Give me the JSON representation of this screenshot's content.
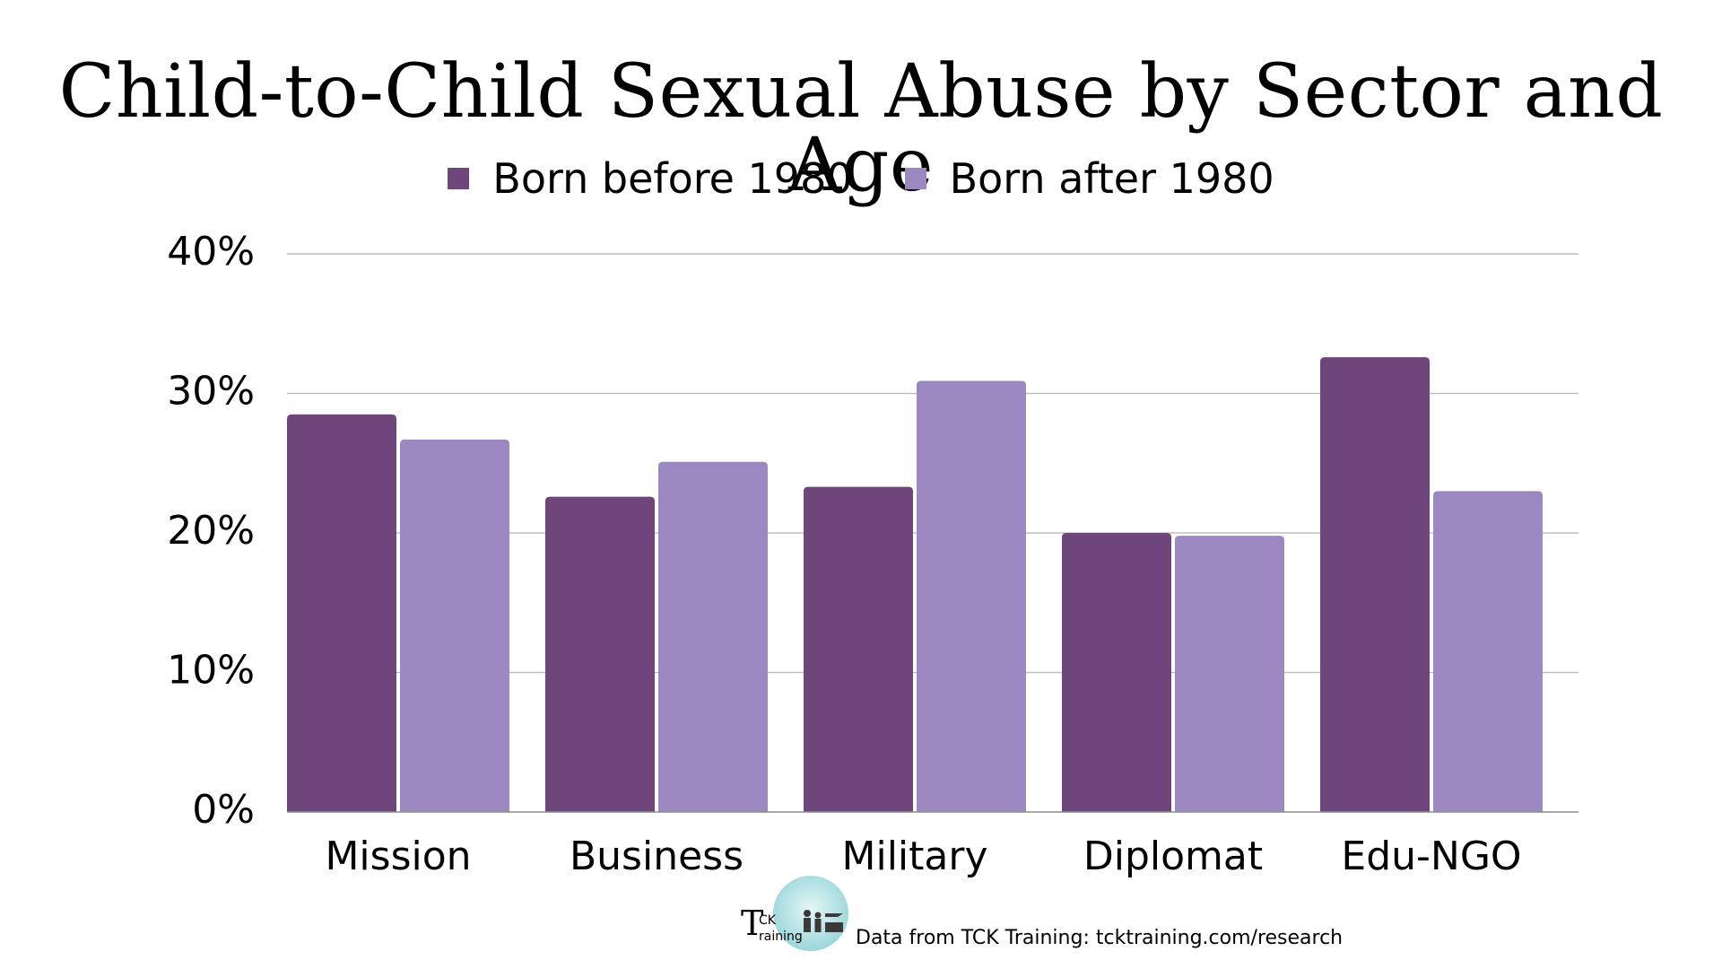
{
  "colors": {
    "before": "#6e467b",
    "after": "#9c88c0",
    "grid": "#bfbfbf",
    "axis": "#8c8c8c"
  },
  "footer": {
    "logo_t": "T",
    "logo_ck": "CK",
    "logo_raining": "raining",
    "source": "Data from TCK Training: tcktraining.com/research"
  },
  "chart_data": {
    "type": "bar",
    "title": "Child-to-Child Sexual Abuse by Sector and Age",
    "categories": [
      "Mission",
      "Business",
      "Military",
      "Diplomat",
      "Edu-NGO"
    ],
    "series": [
      {
        "name": "Born before 1980",
        "values": [
          28.5,
          22.6,
          23.3,
          20.0,
          32.6
        ]
      },
      {
        "name": "Born after 1980",
        "values": [
          26.7,
          25.1,
          30.9,
          19.8,
          23.0
        ]
      }
    ],
    "ylim": [
      0,
      40
    ],
    "yticks": [
      0,
      10,
      20,
      30,
      40
    ],
    "ytick_labels": [
      "0%",
      "10%",
      "20%",
      "30%",
      "40%"
    ],
    "grid": true,
    "legend_position": "top-center"
  }
}
